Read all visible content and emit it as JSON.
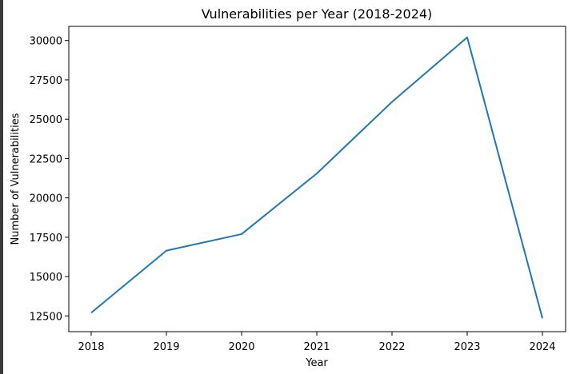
{
  "chart_data": {
    "type": "line",
    "title": "Vulnerabilities per Year (2018-2024)",
    "xlabel": "Year",
    "ylabel": "Number of Vulnerabilities",
    "x": [
      "2018",
      "2019",
      "2020",
      "2021",
      "2022",
      "2023",
      "2024"
    ],
    "series": [
      {
        "values": [
          12700,
          16650,
          17700,
          21550,
          26100,
          30200,
          12350
        ],
        "color": "#1f77b4"
      }
    ],
    "ylim": [
      11500,
      30900
    ],
    "yticks": [
      12500,
      15000,
      17500,
      20000,
      22500,
      25000,
      27500,
      30000
    ],
    "grid": false,
    "legend": "none"
  }
}
